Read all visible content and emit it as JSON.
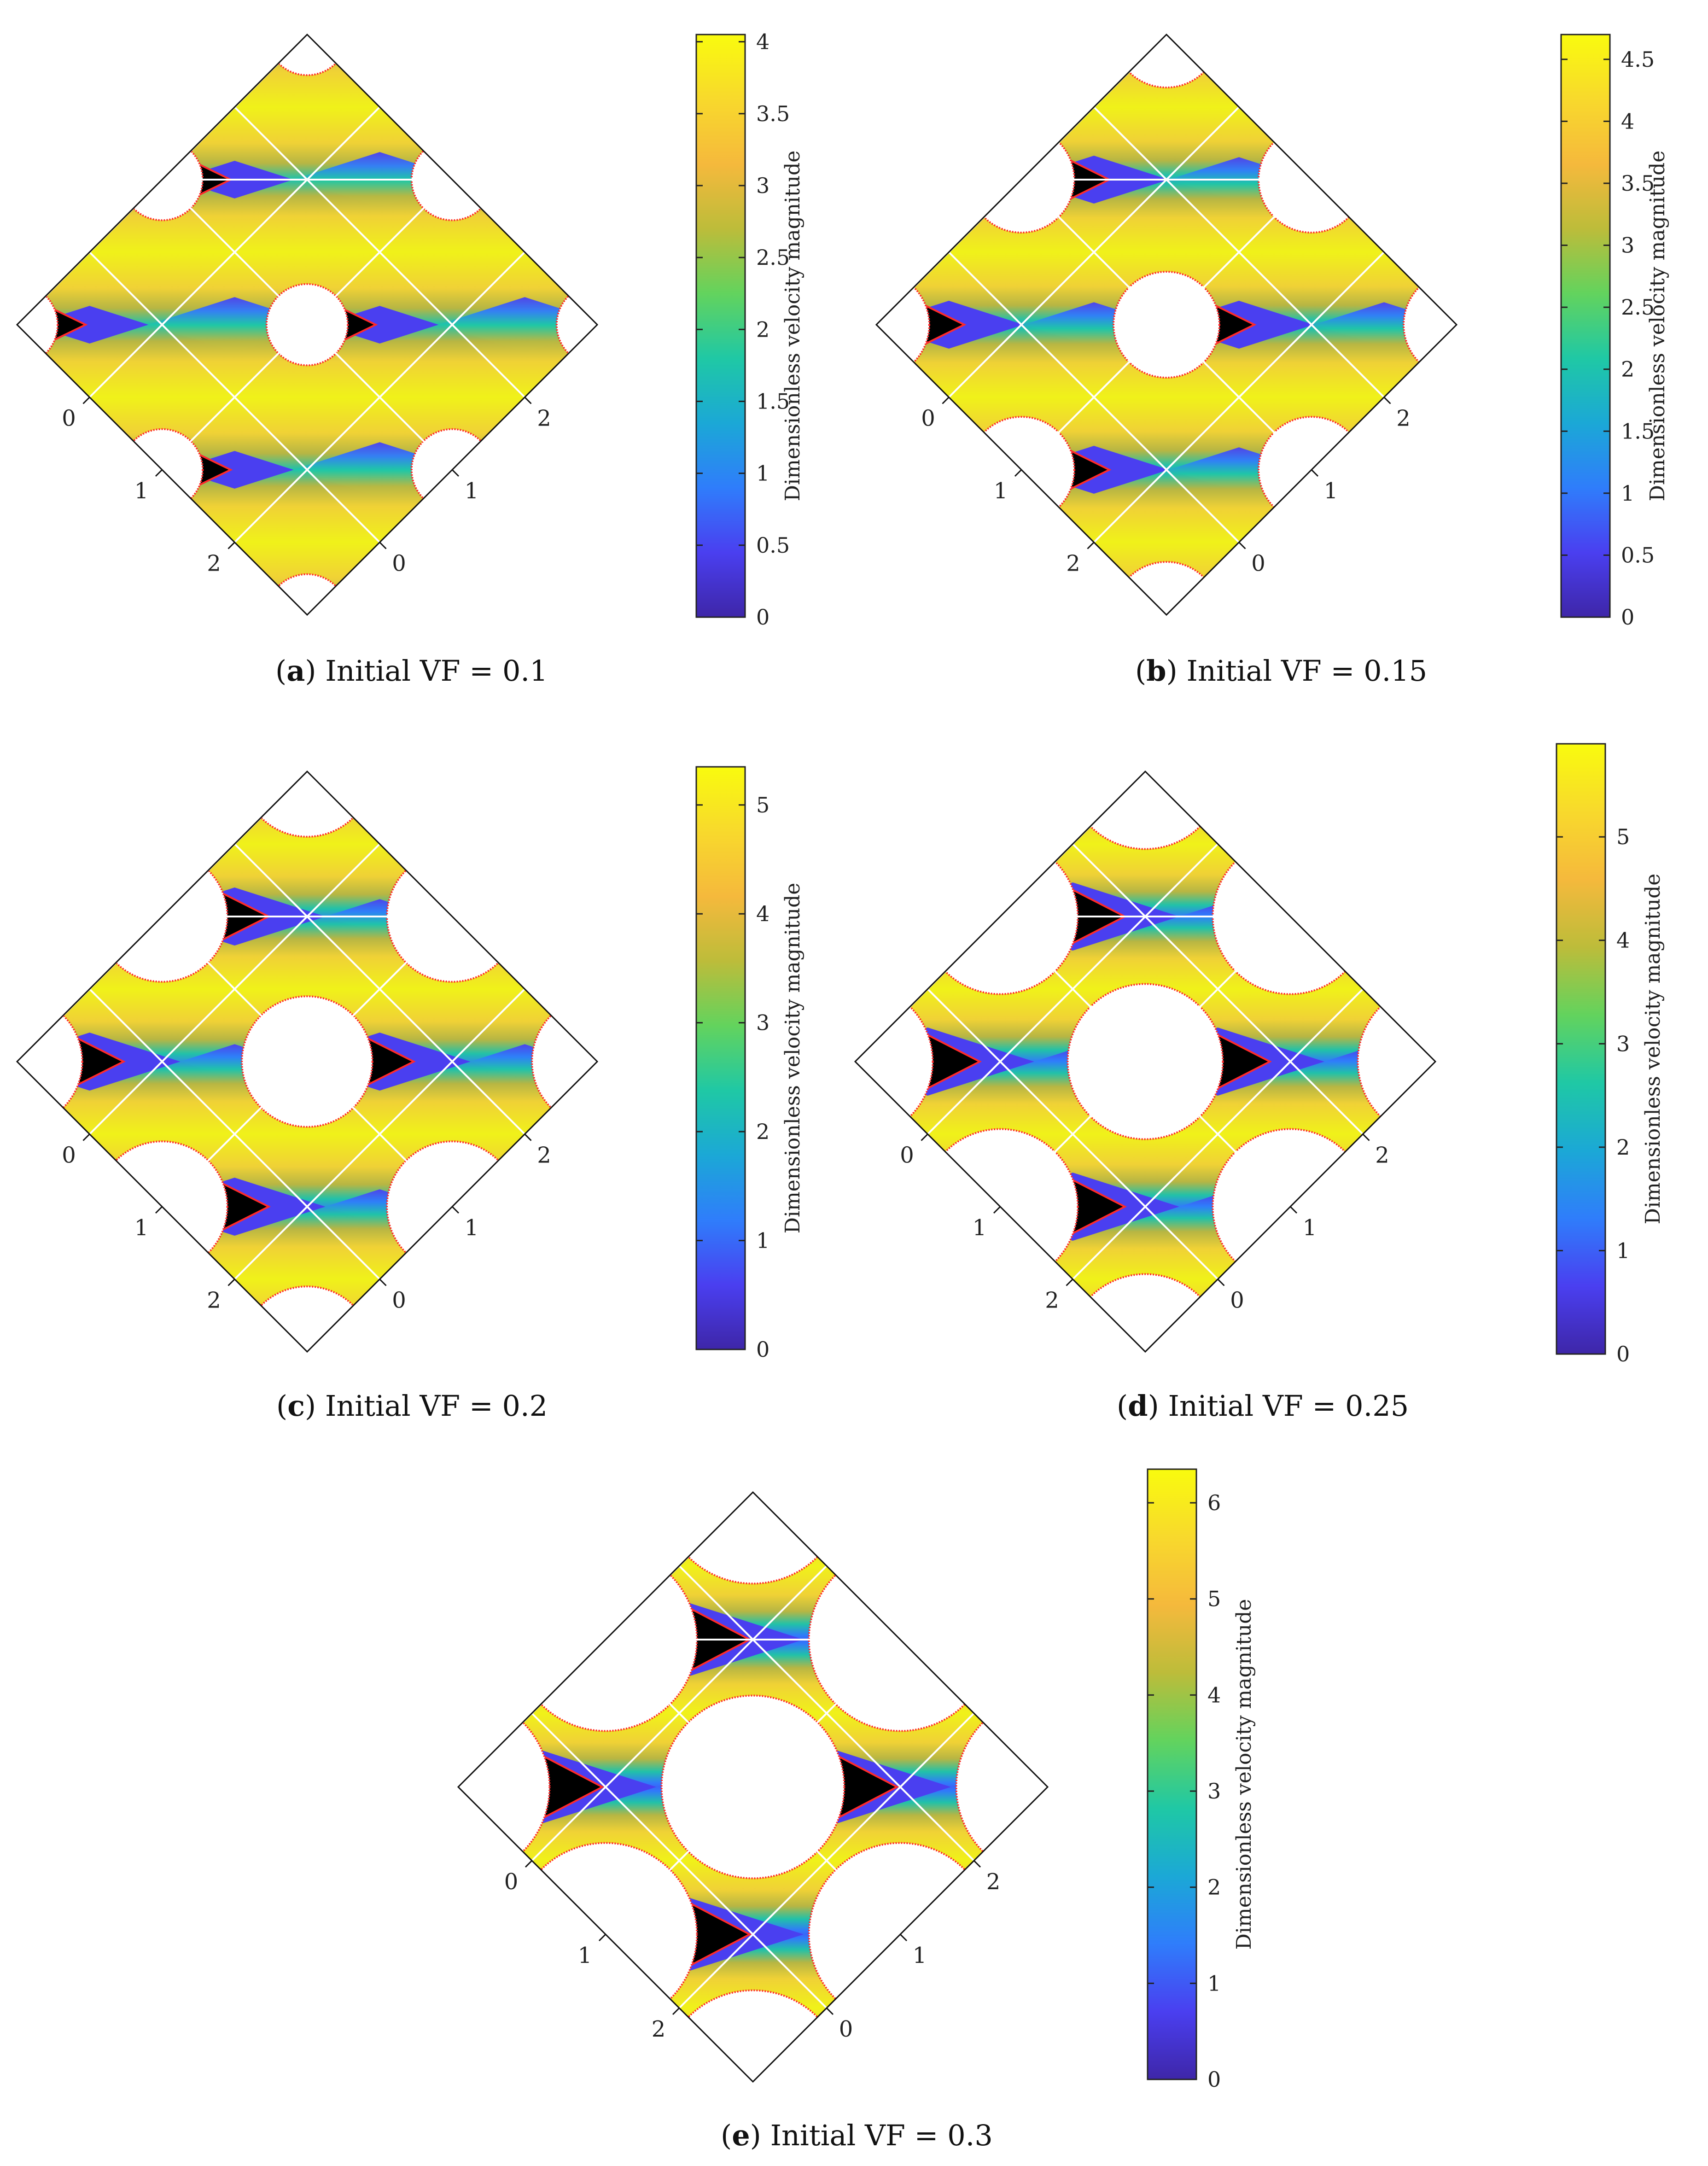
{
  "colorbar_label": "Dimensionless velocity magnitude",
  "palette": [
    "#3e26a8",
    "#4a3ff0",
    "#2f7dfb",
    "#1ba8d6",
    "#1fc8a5",
    "#63d35d",
    "#bdbc3a",
    "#f5b93c",
    "#f8d92c",
    "#f9fb0e"
  ],
  "solid_color": "#000000",
  "boundary_color": "#ff2a2a",
  "grid_line_color": "#ffffff",
  "chart_data": [
    {
      "type": "heatmap",
      "panel": "a",
      "caption_letter": "a",
      "caption_text": "Initial VF = 0.1",
      "initial_vf": 0.1,
      "colorbar": {
        "min": 0,
        "max": 4.05,
        "ticks": [
          "0",
          "0.5",
          "1",
          "1.5",
          "2",
          "2.5",
          "3",
          "3.5",
          "4"
        ],
        "tick_values": [
          0,
          0.5,
          1,
          1.5,
          2,
          2.5,
          3,
          3.5,
          4
        ]
      },
      "axis_x_ticks": [
        "0",
        "1",
        "2"
      ],
      "axis_y_ticks": [
        "0",
        "1",
        "2"
      ]
    },
    {
      "type": "heatmap",
      "panel": "b",
      "caption_letter": "b",
      "caption_text": "Initial VF = 0.15",
      "initial_vf": 0.15,
      "colorbar": {
        "min": 0,
        "max": 4.7,
        "ticks": [
          "0",
          "0.5",
          "1",
          "1.5",
          "2",
          "2.5",
          "3",
          "3.5",
          "4",
          "4.5"
        ],
        "tick_values": [
          0,
          0.5,
          1,
          1.5,
          2,
          2.5,
          3,
          3.5,
          4,
          4.5
        ]
      },
      "axis_x_ticks": [
        "0",
        "1",
        "2"
      ],
      "axis_y_ticks": [
        "0",
        "1",
        "2"
      ]
    },
    {
      "type": "heatmap",
      "panel": "c",
      "caption_letter": "c",
      "caption_text": "Initial VF = 0.2",
      "initial_vf": 0.2,
      "colorbar": {
        "min": 0,
        "max": 5.35,
        "ticks": [
          "0",
          "1",
          "2",
          "3",
          "4",
          "5"
        ],
        "tick_values": [
          0,
          1,
          2,
          3,
          4,
          5
        ]
      },
      "axis_x_ticks": [
        "0",
        "1",
        "2"
      ],
      "axis_y_ticks": [
        "0",
        "1",
        "2"
      ]
    },
    {
      "type": "heatmap",
      "panel": "d",
      "caption_letter": "d",
      "caption_text": "Initial VF = 0.25",
      "initial_vf": 0.25,
      "colorbar": {
        "min": 0,
        "max": 5.9,
        "ticks": [
          "0",
          "1",
          "2",
          "3",
          "4",
          "5"
        ],
        "tick_values": [
          0,
          1,
          2,
          3,
          4,
          5
        ]
      },
      "axis_x_ticks": [
        "0",
        "1",
        "2"
      ],
      "axis_y_ticks": [
        "0",
        "1",
        "2"
      ]
    },
    {
      "type": "heatmap",
      "panel": "e",
      "caption_letter": "e",
      "caption_text": "Initial VF = 0.3",
      "initial_vf": 0.3,
      "colorbar": {
        "min": 0,
        "max": 6.35,
        "ticks": [
          "0",
          "1",
          "2",
          "3",
          "4",
          "5",
          "6"
        ],
        "tick_values": [
          0,
          1,
          2,
          3,
          4,
          5,
          6
        ]
      },
      "axis_x_ticks": [
        "0",
        "1",
        "2"
      ],
      "axis_y_ticks": [
        "0",
        "1",
        "2"
      ]
    }
  ]
}
